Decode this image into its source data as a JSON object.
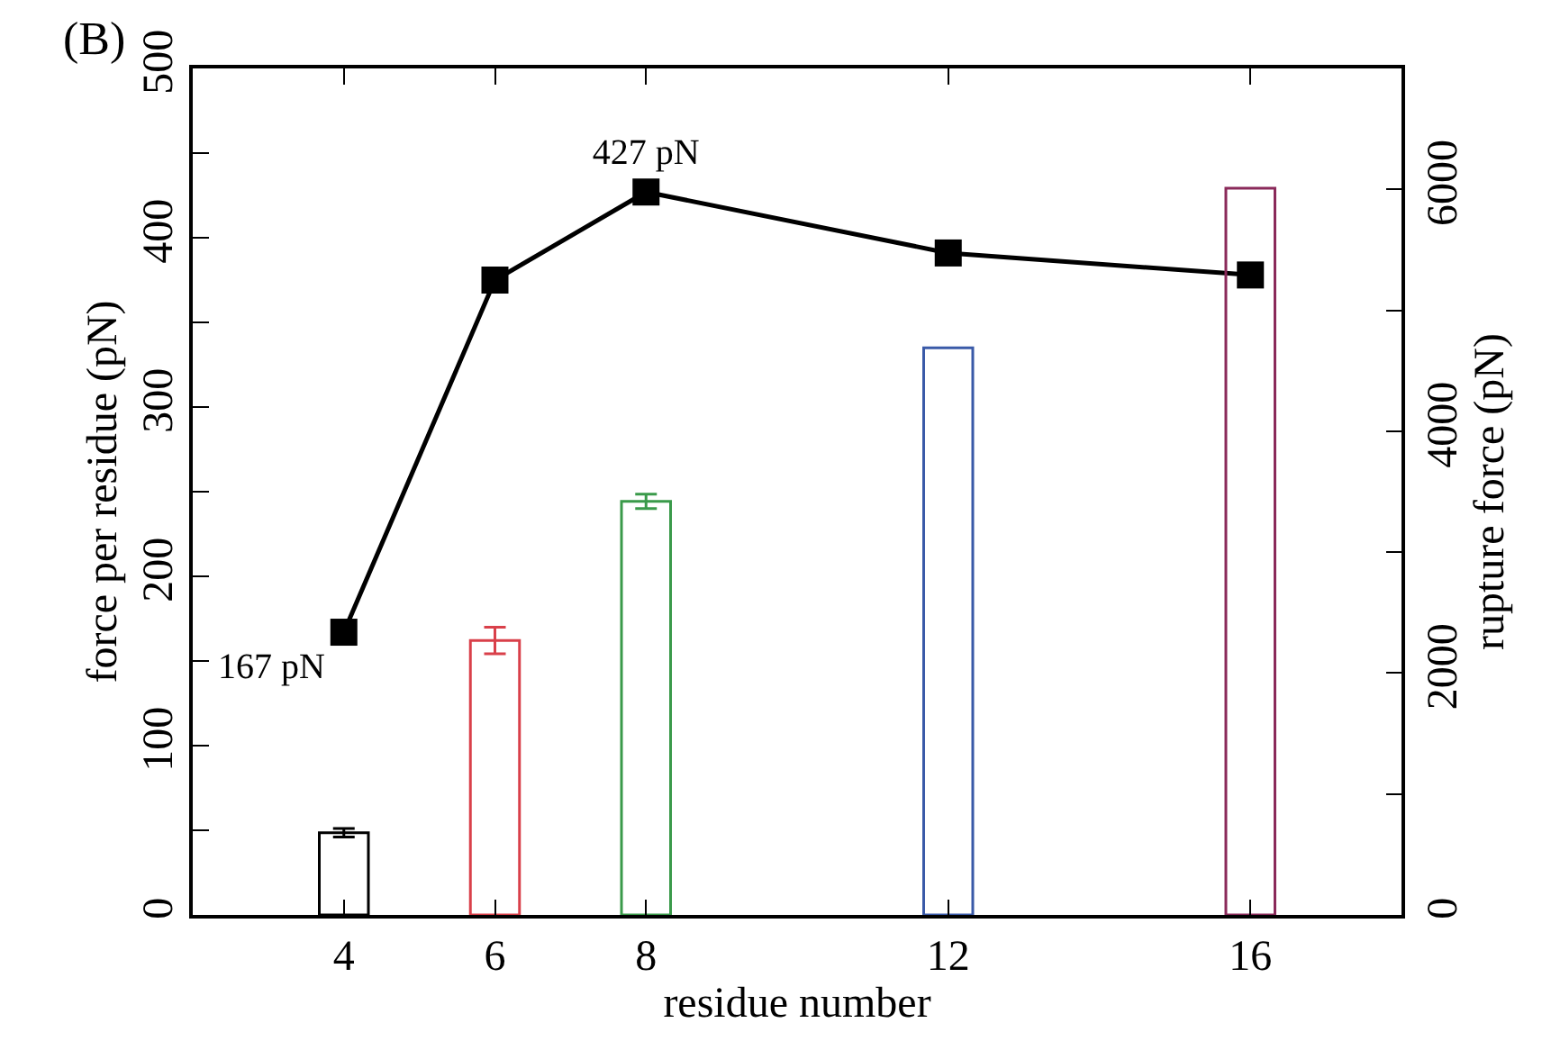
{
  "chart_data": {
    "type": "bar",
    "xlabel": "residue number",
    "ylabel": "force per residue (pN)",
    "y2label": "rupture force (pN)",
    "annotations": [
      "(B)"
    ],
    "x": [
      4,
      6,
      8,
      12,
      16
    ],
    "series": [
      {
        "type": "bar",
        "axis": "y2",
        "colors": [
          "#000000",
          "#d9404a",
          "#3a9a4a",
          "#3a5aa8",
          "#8a2a5a"
        ],
        "values": [
          680,
          2270,
          3420,
          4690,
          6010
        ],
        "errors": [
          35,
          110,
          60,
          null,
          null
        ]
      },
      {
        "type": "line",
        "axis": "y",
        "color": "#000000",
        "values": [
          167,
          375,
          427,
          391,
          378
        ],
        "value_labels": [
          "167 pN",
          null,
          "427 pN",
          null,
          null
        ],
        "marker": "square",
        "line_style": "solid"
      }
    ],
    "xlim": [
      2,
      18
    ],
    "xticks": [
      4,
      6,
      8,
      12,
      16
    ],
    "ylim": [
      0,
      500
    ],
    "yticks": [
      0,
      {
        "value": 50,
        "label": null
      },
      100,
      {
        "value": 150,
        "label": null
      },
      200,
      {
        "value": 250,
        "label": null
      },
      300,
      {
        "value": 350,
        "label": null
      },
      400,
      {
        "value": 450,
        "label": null
      },
      500
    ],
    "y2lim": [
      0,
      7000
    ],
    "y2ticks": [
      0,
      {
        "value": 1000,
        "label": null
      },
      2000,
      {
        "value": 3000,
        "label": null
      },
      4000,
      {
        "value": 5000,
        "label": null
      },
      6000,
      {
        "value": 7000,
        "label": null
      }
    ],
    "grid": false
  }
}
